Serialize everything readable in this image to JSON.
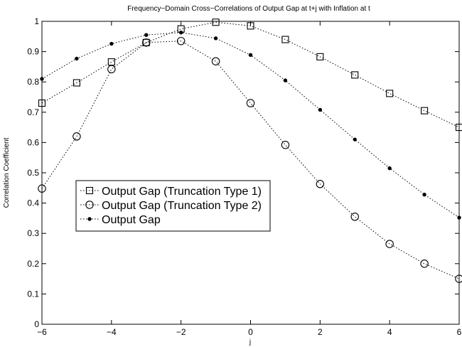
{
  "chart_data": {
    "type": "line",
    "title": "Frequency−Domain Cross−Correlations of Output Gap at t+j with Inflation at t",
    "xlabel": "j",
    "ylabel": "Correlation Coefficient",
    "xlim": [
      -6,
      6
    ],
    "ylim": [
      0,
      1
    ],
    "x": [
      -6,
      -5,
      -4,
      -3,
      -2,
      -1,
      0,
      1,
      2,
      3,
      4,
      5,
      6
    ],
    "xticks": [
      -6,
      -4,
      -2,
      0,
      2,
      4,
      6
    ],
    "xtick_labels": [
      "−6",
      "−4",
      "−2",
      "0",
      "2",
      "4",
      "6"
    ],
    "yticks": [
      0,
      0.1,
      0.2,
      0.3,
      0.4,
      0.5,
      0.6,
      0.7,
      0.8,
      0.9,
      1
    ],
    "ytick_labels": [
      "0",
      "0.1",
      "0.2",
      "0.3",
      "0.4",
      "0.5",
      "0.6",
      "0.7",
      "0.8",
      "0.9",
      "1"
    ],
    "grid": false,
    "legend_position": "middle-left",
    "series": [
      {
        "name": "Output Gap (Truncation Type 1)",
        "marker": "square",
        "values": [
          0.73,
          0.797,
          0.866,
          0.93,
          0.975,
          0.997,
          0.985,
          0.94,
          0.883,
          0.823,
          0.762,
          0.705,
          0.65
        ]
      },
      {
        "name": "Output Gap (Truncation Type 2)",
        "marker": "circle",
        "values": [
          0.448,
          0.62,
          0.842,
          0.93,
          0.935,
          0.868,
          0.73,
          0.592,
          0.463,
          0.355,
          0.265,
          0.2,
          0.15
        ]
      },
      {
        "name": "Output Gap",
        "marker": "dot",
        "values": [
          0.81,
          0.877,
          0.926,
          0.955,
          0.963,
          0.944,
          0.889,
          0.805,
          0.708,
          0.61,
          0.515,
          0.428,
          0.352
        ]
      }
    ]
  }
}
